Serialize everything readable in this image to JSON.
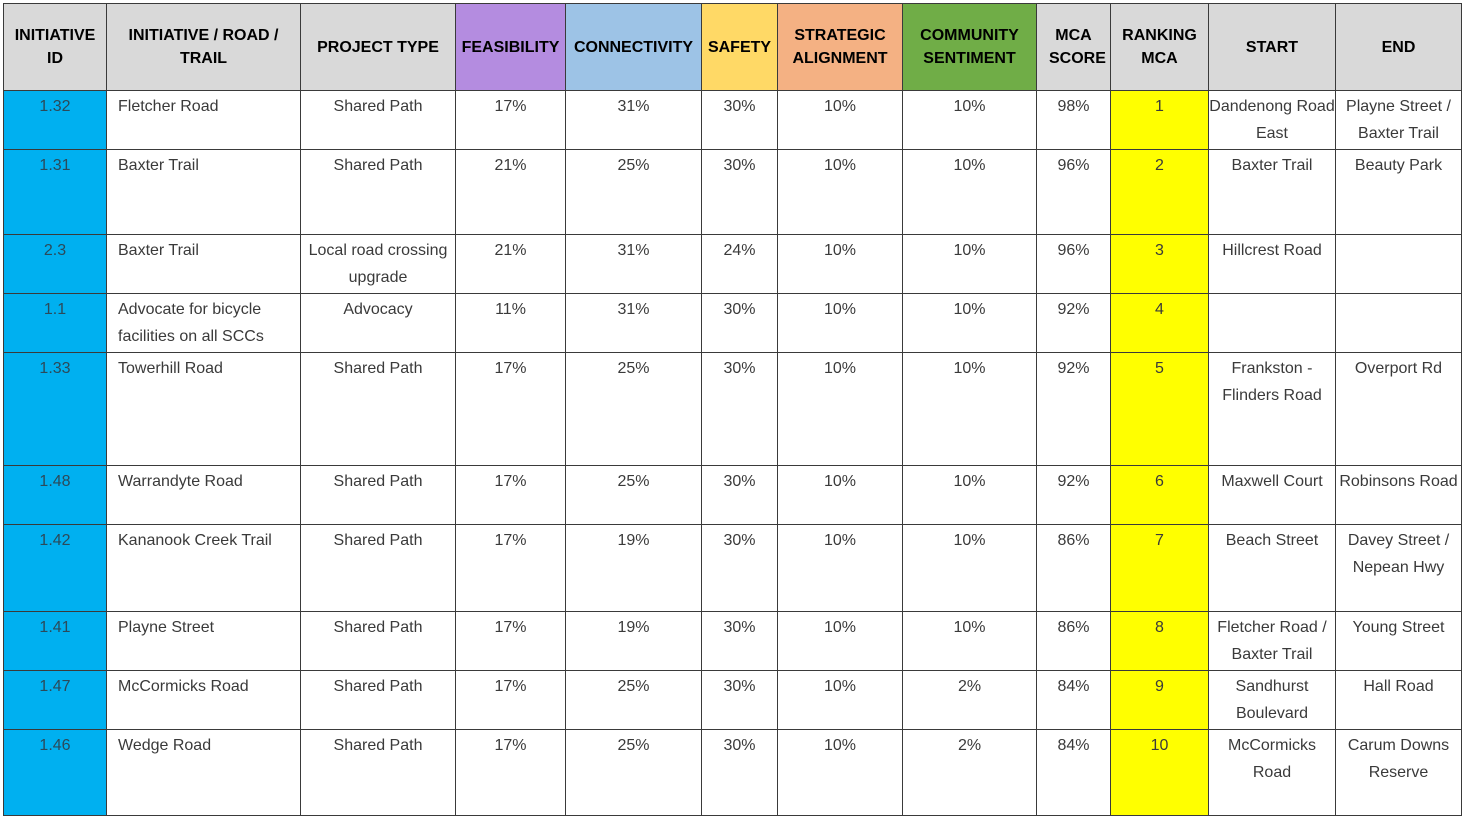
{
  "colors": {
    "header_default": "#d9d9d9",
    "feasibility": "#b48ce0",
    "connectivity": "#9dc3e6",
    "safety": "#ffd966",
    "strategic_alignment": "#f4b183",
    "community_sentiment": "#70ad47",
    "initiative_id_column": "#00b0f0",
    "ranking_column": "#ffff00"
  },
  "headers": {
    "initiative_id": "INITIATIVE ID",
    "initiative_road_trail": "INITIATIVE / ROAD / TRAIL",
    "project_type": "PROJECT TYPE",
    "feasibility": "FEASIBILITY",
    "connectivity": "CONNECTIVITY",
    "safety": "SAFETY",
    "strategic_alignment": "STRATEGIC ALIGNMENT",
    "community_sentiment": "COMMUNITY SENTIMENT",
    "mca_score": "MCA SCORE",
    "ranking_mca": "RANKING MCA",
    "start": "START",
    "end": "END"
  },
  "rows": [
    {
      "id": "1.32",
      "name": "Fletcher Road",
      "type": "Shared Path",
      "feasibility": "17%",
      "connectivity": "31%",
      "safety": "30%",
      "strategic": "10%",
      "community": "10%",
      "score": "98%",
      "rank": "1",
      "start": "Dandenong Road East",
      "end": "Playne Street / Baxter Trail"
    },
    {
      "id": "1.31",
      "name": "Baxter Trail",
      "type": "Shared Path",
      "feasibility": "21%",
      "connectivity": "25%",
      "safety": "30%",
      "strategic": "10%",
      "community": "10%",
      "score": "96%",
      "rank": "2",
      "start": "Baxter Trail",
      "end": "Beauty Park"
    },
    {
      "id": "2.3",
      "name": "Baxter Trail",
      "type": "Local road crossing upgrade",
      "feasibility": "21%",
      "connectivity": "31%",
      "safety": "24%",
      "strategic": "10%",
      "community": "10%",
      "score": "96%",
      "rank": "3",
      "start": "Hillcrest Road",
      "end": ""
    },
    {
      "id": "1.1",
      "name": "Advocate for bicycle facilities on all SCCs",
      "type": "Advocacy",
      "feasibility": "11%",
      "connectivity": "31%",
      "safety": "30%",
      "strategic": "10%",
      "community": "10%",
      "score": "92%",
      "rank": "4",
      "start": "",
      "end": ""
    },
    {
      "id": "1.33",
      "name": "Towerhill Road",
      "type": "Shared Path",
      "feasibility": "17%",
      "connectivity": "25%",
      "safety": "30%",
      "strategic": "10%",
      "community": "10%",
      "score": "92%",
      "rank": "5",
      "start": "Frankston - Flinders Road",
      "end": "Overport Rd"
    },
    {
      "id": "1.48",
      "name": "Warrandyte Road",
      "type": "Shared Path",
      "feasibility": "17%",
      "connectivity": "25%",
      "safety": "30%",
      "strategic": "10%",
      "community": "10%",
      "score": "92%",
      "rank": "6",
      "start": "Maxwell Court",
      "end": "Robinsons Road"
    },
    {
      "id": "1.42",
      "name": "Kananook Creek Trail",
      "type": "Shared Path",
      "feasibility": "17%",
      "connectivity": "19%",
      "safety": "30%",
      "strategic": "10%",
      "community": "10%",
      "score": "86%",
      "rank": "7",
      "start": "Beach Street",
      "end": "Davey Street / Nepean Hwy"
    },
    {
      "id": "1.41",
      "name": "Playne Street",
      "type": "Shared Path",
      "feasibility": "17%",
      "connectivity": "19%",
      "safety": "30%",
      "strategic": "10%",
      "community": "10%",
      "score": "86%",
      "rank": "8",
      "start": "Fletcher Road / Baxter Trail",
      "end": "Young Street"
    },
    {
      "id": "1.47",
      "name": "McCormicks Road",
      "type": "Shared Path",
      "feasibility": "17%",
      "connectivity": "25%",
      "safety": "30%",
      "strategic": "10%",
      "community": "2%",
      "score": "84%",
      "rank": "9",
      "start": "Sandhurst Boulevard",
      "end": "Hall Road"
    },
    {
      "id": "1.46",
      "name": "Wedge Road",
      "type": "Shared Path",
      "feasibility": "17%",
      "connectivity": "25%",
      "safety": "30%",
      "strategic": "10%",
      "community": "2%",
      "score": "84%",
      "rank": "10",
      "start": "McCormicks Road",
      "end": "Carum Downs Reserve"
    }
  ]
}
